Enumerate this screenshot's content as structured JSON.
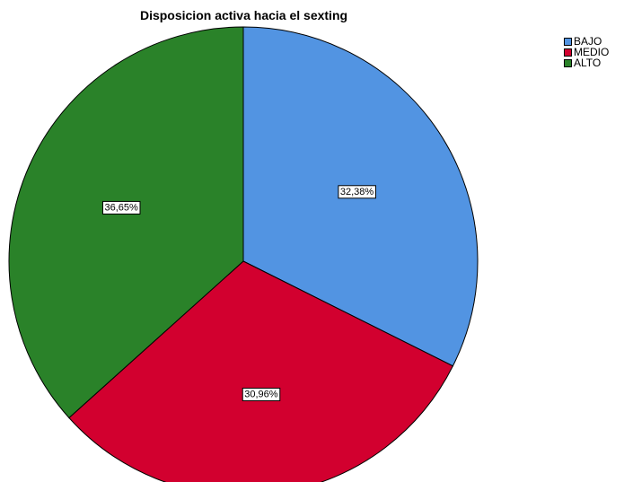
{
  "chart_data": {
    "type": "pie",
    "title": "Disposicion activa hacia el sexting",
    "categories": [
      "BAJO",
      "MEDIO",
      "ALTO"
    ],
    "values": [
      32.38,
      30.96,
      36.65
    ],
    "labels": [
      "32,38%",
      "30,96%",
      "36,65%"
    ],
    "colors": [
      "#5294e2",
      "#d2002f",
      "#2a8229"
    ],
    "start_angle": "12 o'clock",
    "direction": "clockwise",
    "legend_position": "top-right"
  }
}
